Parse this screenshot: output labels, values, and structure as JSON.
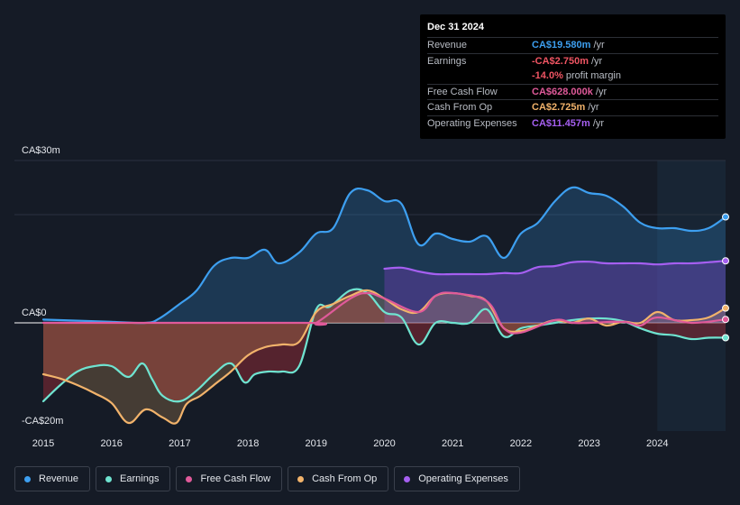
{
  "tooltip": {
    "date": "Dec 31 2024",
    "rows": [
      {
        "label": "Revenue",
        "value": "CA$19.580m",
        "unit": "/yr",
        "color": "#3d9ff0"
      },
      {
        "label": "Earnings",
        "value": "-CA$2.750m",
        "unit": "/yr",
        "color": "#f05563"
      },
      {
        "label": "",
        "value": "-14.0%",
        "unit": "profit margin",
        "color": "#f05563"
      },
      {
        "label": "Free Cash Flow",
        "value": "CA$628.000k",
        "unit": "/yr",
        "color": "#e05a9a"
      },
      {
        "label": "Cash From Op",
        "value": "CA$2.725m",
        "unit": "/yr",
        "color": "#f2b36b"
      },
      {
        "label": "Operating Expenses",
        "value": "CA$11.457m",
        "unit": "/yr",
        "color": "#a55ff0"
      }
    ]
  },
  "legend": [
    {
      "label": "Revenue",
      "color": "#3d9ff0"
    },
    {
      "label": "Earnings",
      "color": "#6fe3d0"
    },
    {
      "label": "Free Cash Flow",
      "color": "#e05a9a"
    },
    {
      "label": "Cash From Op",
      "color": "#f2b36b"
    },
    {
      "label": "Operating Expenses",
      "color": "#a55ff0"
    }
  ],
  "chart_data": {
    "type": "area",
    "title": "",
    "ylabel": "",
    "y_axis_labels": [
      "CA$30m",
      "CA$0",
      "-CA$20m"
    ],
    "ylim": [
      -20,
      30
    ],
    "xlim": [
      2015.0,
      2025.0
    ],
    "x_ticks": [
      "2015",
      "2016",
      "2017",
      "2018",
      "2019",
      "2020",
      "2021",
      "2022",
      "2023",
      "2024"
    ],
    "x_tick_values": [
      2015,
      2016,
      2017,
      2018,
      2019,
      2020,
      2021,
      2022,
      2023,
      2024
    ],
    "highlight_from": 2024.0,
    "series": [
      {
        "name": "Revenue",
        "color": "#3d9ff0",
        "x": [
          2015.0,
          2015.5,
          2016.0,
          2016.5,
          2016.7,
          2017.0,
          2017.25,
          2017.5,
          2017.75,
          2018.0,
          2018.25,
          2018.45,
          2018.75,
          2019.0,
          2019.25,
          2019.5,
          2019.75,
          2020.0,
          2020.25,
          2020.5,
          2020.75,
          2021.0,
          2021.25,
          2021.5,
          2021.75,
          2022.0,
          2022.25,
          2022.5,
          2022.75,
          2023.0,
          2023.25,
          2023.5,
          2023.75,
          2024.0,
          2024.25,
          2024.5,
          2024.75,
          2025.0
        ],
        "values": [
          0.6,
          0.4,
          0.2,
          0.0,
          0.8,
          3.5,
          6.0,
          10.5,
          12.0,
          12.0,
          13.5,
          11.0,
          13.0,
          16.5,
          17.5,
          24.0,
          24.5,
          22.5,
          22.0,
          14.5,
          16.5,
          15.5,
          15.0,
          16.0,
          12.0,
          16.5,
          18.5,
          22.5,
          25.0,
          24.0,
          23.5,
          21.5,
          18.5,
          17.5,
          17.5,
          17.0,
          17.5,
          19.58
        ]
      },
      {
        "name": "Earnings",
        "color": "#6fe3d0",
        "x": [
          2015.0,
          2015.25,
          2015.5,
          2015.75,
          2016.0,
          2016.25,
          2016.45,
          2016.6,
          2016.75,
          2017.0,
          2017.25,
          2017.5,
          2017.75,
          2017.95,
          2018.1,
          2018.3,
          2018.5,
          2018.75,
          2019.0,
          2019.2,
          2019.5,
          2019.75,
          2020.0,
          2020.25,
          2020.5,
          2020.75,
          2021.0,
          2021.25,
          2021.5,
          2021.75,
          2022.0,
          2022.25,
          2022.5,
          2022.75,
          2023.0,
          2023.25,
          2023.5,
          2023.75,
          2024.0,
          2024.25,
          2024.5,
          2024.75,
          2025.0
        ],
        "values": [
          -14.5,
          -11.5,
          -9.0,
          -8.0,
          -8.0,
          -10.0,
          -7.5,
          -10.5,
          -13.5,
          -14.5,
          -12.5,
          -9.5,
          -7.5,
          -11.0,
          -9.5,
          -9.0,
          -9.0,
          -8.0,
          2.5,
          3.0,
          6.0,
          5.5,
          2.0,
          1.0,
          -4.0,
          0.0,
          0.0,
          0.0,
          2.5,
          -2.5,
          -1.0,
          -0.5,
          0.0,
          0.5,
          0.8,
          0.8,
          0.3,
          -1.0,
          -2.0,
          -2.3,
          -3.0,
          -2.75,
          -2.75
        ]
      },
      {
        "name": "Free Cash Flow",
        "color": "#e05a9a",
        "x": [
          2015.0,
          2018.8,
          2019.0,
          2019.5,
          2019.75,
          2020.0,
          2020.5,
          2020.75,
          2021.0,
          2021.5,
          2021.75,
          2022.0,
          2022.5,
          2022.75,
          2023.0,
          2023.5,
          2023.75,
          2024.0,
          2024.5,
          2025.0
        ],
        "values": [
          0.0,
          0.0,
          0.0,
          4.5,
          5.5,
          4.5,
          2.0,
          5.0,
          5.5,
          4.0,
          -1.0,
          -1.8,
          0.5,
          0.0,
          0.0,
          0.2,
          -0.5,
          1.0,
          0.0,
          0.63
        ]
      },
      {
        "name": "Cash From Op",
        "color": "#f2b36b",
        "x": [
          2015.0,
          2015.25,
          2015.5,
          2015.75,
          2016.0,
          2016.25,
          2016.5,
          2016.75,
          2016.95,
          2017.1,
          2017.3,
          2017.5,
          2017.75,
          2018.0,
          2018.25,
          2018.5,
          2018.75,
          2019.0,
          2019.25,
          2019.5,
          2019.75,
          2020.0,
          2020.25,
          2020.5,
          2020.75,
          2021.0,
          2021.25,
          2021.5,
          2021.75,
          2022.0,
          2022.25,
          2022.5,
          2022.75,
          2023.0,
          2023.25,
          2023.5,
          2023.75,
          2024.0,
          2024.25,
          2024.5,
          2024.75,
          2025.0
        ],
        "values": [
          -9.5,
          -10.3,
          -11.5,
          -13.0,
          -14.8,
          -18.5,
          -16.0,
          -17.5,
          -18.5,
          -15.0,
          -13.5,
          -11.5,
          -9.0,
          -6.0,
          -4.5,
          -4.0,
          -3.5,
          2.0,
          3.5,
          5.0,
          6.0,
          4.5,
          2.5,
          2.0,
          5.0,
          5.5,
          5.0,
          4.0,
          -1.0,
          -1.5,
          -0.5,
          0.5,
          0.0,
          0.8,
          -0.5,
          0.2,
          0.0,
          2.0,
          0.5,
          0.5,
          1.0,
          2.725
        ]
      },
      {
        "name": "Operating Expenses",
        "color": "#a55ff0",
        "x": [
          2020.0,
          2020.25,
          2020.5,
          2020.75,
          2021.0,
          2021.25,
          2021.5,
          2021.75,
          2022.0,
          2022.25,
          2022.5,
          2022.75,
          2023.0,
          2023.25,
          2023.5,
          2023.75,
          2024.0,
          2024.25,
          2024.5,
          2024.75,
          2025.0
        ],
        "values": [
          10.0,
          10.2,
          9.5,
          9.0,
          9.0,
          9.0,
          9.0,
          9.2,
          9.2,
          10.3,
          10.5,
          11.2,
          11.3,
          11.0,
          11.0,
          11.0,
          10.8,
          11.0,
          11.0,
          11.2,
          11.457
        ]
      }
    ]
  }
}
